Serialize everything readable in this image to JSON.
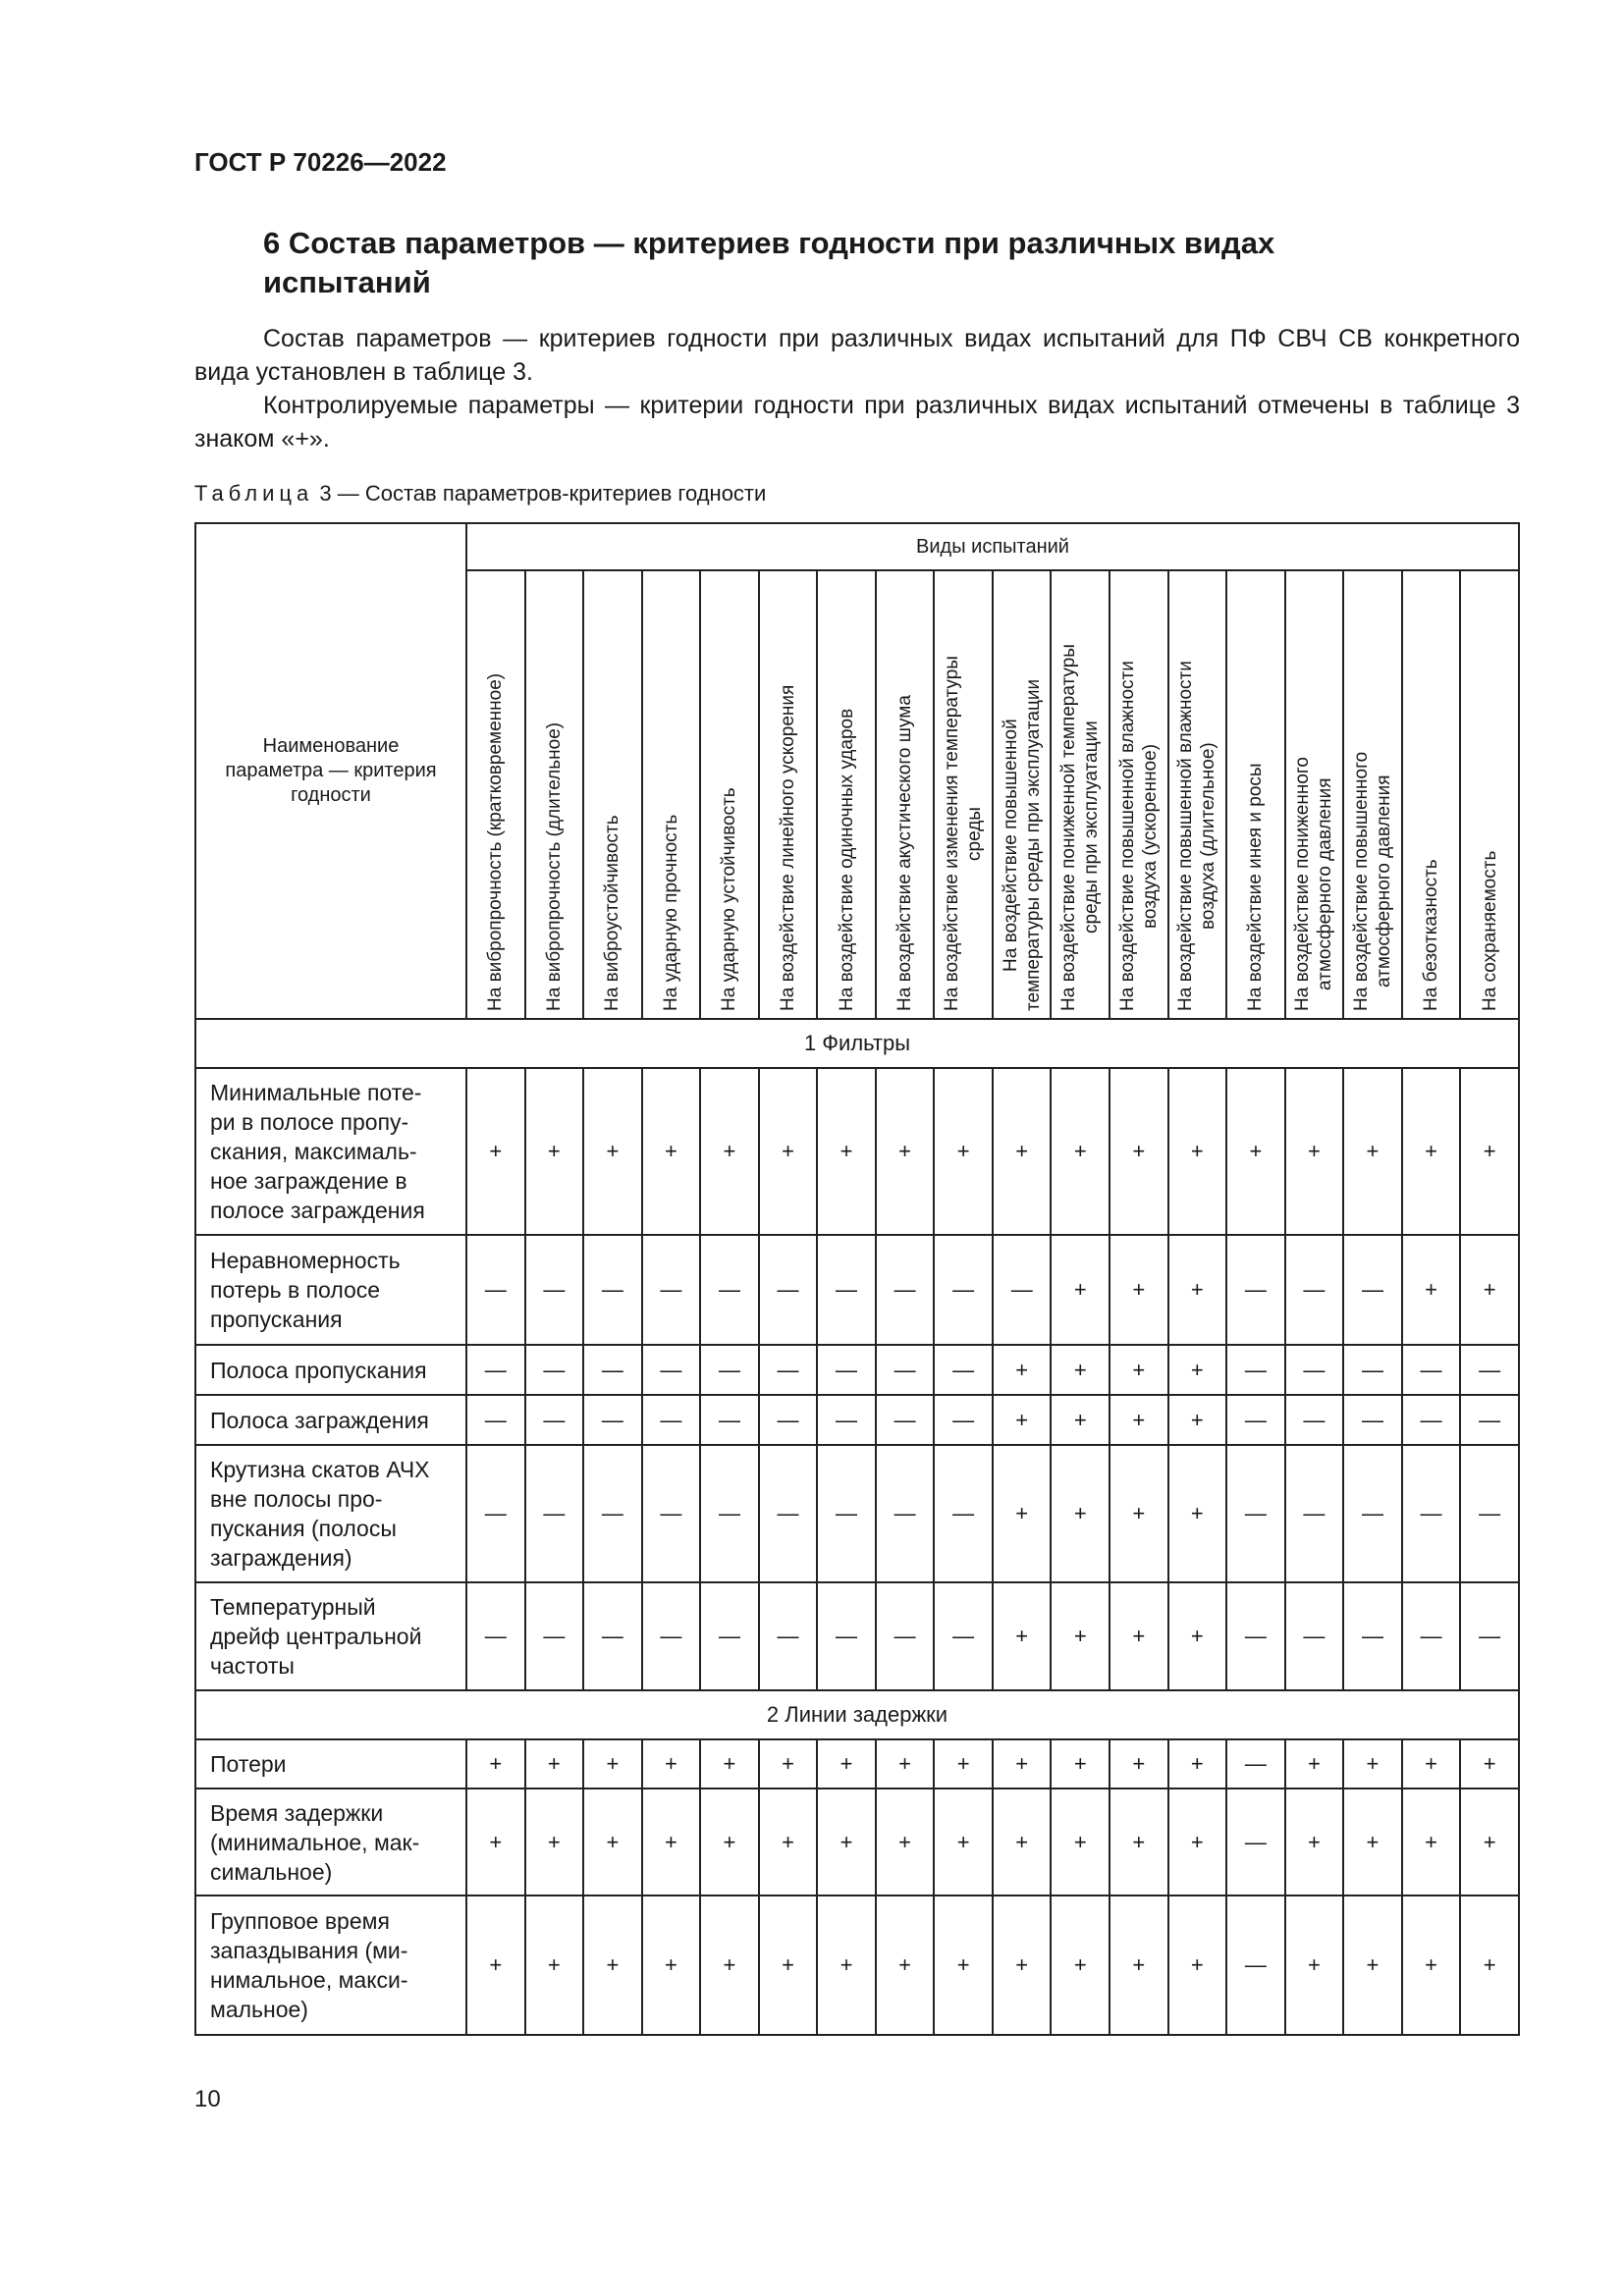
{
  "header": {
    "standard": "ГОСТ Р 70226—2022"
  },
  "section": {
    "title": "6 Состав параметров — критериев годности при различных видах испытаний",
    "paragraphs": [
      "Состав параметров — критериев годности при различных видах испытаний для ПФ СВЧ СВ конкретного вида установлен в таблице 3.",
      "Контролируемые параметры — критерии годности при различных видах испытаний отмечены в таблице 3 знаком «+»."
    ]
  },
  "table": {
    "caption_label": "Таблица",
    "caption_text": " 3 — Состав параметров-критериев годности",
    "name_header": "Наименование\nпараметра — критерия\nгодности",
    "group_header": "Виды испытаний",
    "columns": [
      "На вибропрочность (кратковременное)",
      "На вибропрочность (длительное)",
      "На виброустойчивость",
      "На ударную прочность",
      "На ударную устойчивость",
      "На воздействие линейного ускорения",
      "На воздействие одиночных ударов",
      "На воздействие акустического шума",
      "На воздействие изменения температуры\nсреды",
      "На воздействие повышенной\nтемпературы среды при эксплуатации",
      "На воздействие пониженной температуры\nсреды при эксплуатации",
      "На воздействие повышенной влажности\nвоздуха (ускоренное)",
      "На воздействие повышенной влажности\nвоздуха (длительное)",
      "На воздействие инея и росы",
      "На воздействие пониженного\nатмосферного давления",
      "На воздействие повышенного\nатмосферного давления",
      "На безотказность",
      "На сохраняемость"
    ],
    "sections": [
      {
        "title": "1 Фильтры",
        "rows": [
          {
            "name": "Минимальные поте-\nри в полосе пропу-\nскания, максималь-\nное заграждение в\nполосе заграждения",
            "values": [
              "+",
              "+",
              "+",
              "+",
              "+",
              "+",
              "+",
              "+",
              "+",
              "+",
              "+",
              "+",
              "+",
              "+",
              "+",
              "+",
              "+",
              "+"
            ]
          },
          {
            "name": "Неравномерность\nпотерь в полосе\nпропускания",
            "values": [
              "—",
              "—",
              "—",
              "—",
              "—",
              "—",
              "—",
              "—",
              "—",
              "—",
              "+",
              "+",
              "+",
              "—",
              "—",
              "—",
              "+",
              "+"
            ]
          },
          {
            "name": "Полоса пропускания",
            "values": [
              "—",
              "—",
              "—",
              "—",
              "—",
              "—",
              "—",
              "—",
              "—",
              "+",
              "+",
              "+",
              "+",
              "—",
              "—",
              "—",
              "—",
              "—"
            ]
          },
          {
            "name": "Полоса заграждения",
            "values": [
              "—",
              "—",
              "—",
              "—",
              "—",
              "—",
              "—",
              "—",
              "—",
              "+",
              "+",
              "+",
              "+",
              "—",
              "—",
              "—",
              "—",
              "—"
            ]
          },
          {
            "name": "Крутизна скатов АЧХ\nвне полосы про-\nпускания (полосы\nзаграждения)",
            "values": [
              "—",
              "—",
              "—",
              "—",
              "—",
              "—",
              "—",
              "—",
              "—",
              "+",
              "+",
              "+",
              "+",
              "—",
              "—",
              "—",
              "—",
              "—"
            ]
          },
          {
            "name": "Температурный\nдрейф центральной\nчастоты",
            "values": [
              "—",
              "—",
              "—",
              "—",
              "—",
              "—",
              "—",
              "—",
              "—",
              "+",
              "+",
              "+",
              "+",
              "—",
              "—",
              "—",
              "—",
              "—"
            ]
          }
        ]
      },
      {
        "title": "2 Линии задержки",
        "rows": [
          {
            "name": "Потери",
            "values": [
              "+",
              "+",
              "+",
              "+",
              "+",
              "+",
              "+",
              "+",
              "+",
              "+",
              "+",
              "+",
              "+",
              "—",
              "+",
              "+",
              "+",
              "+"
            ]
          },
          {
            "name": "Время задержки\n(минимальное, мак-\nсимальное)",
            "values": [
              "+",
              "+",
              "+",
              "+",
              "+",
              "+",
              "+",
              "+",
              "+",
              "+",
              "+",
              "+",
              "+",
              "—",
              "+",
              "+",
              "+",
              "+"
            ]
          },
          {
            "name": "Групповое время\nзапаздывания (ми-\nнимальное, макси-\nмальное)",
            "values": [
              "+",
              "+",
              "+",
              "+",
              "+",
              "+",
              "+",
              "+",
              "+",
              "+",
              "+",
              "+",
              "+",
              "—",
              "+",
              "+",
              "+",
              "+"
            ]
          }
        ]
      }
    ]
  },
  "footer": {
    "page_number": "10"
  }
}
